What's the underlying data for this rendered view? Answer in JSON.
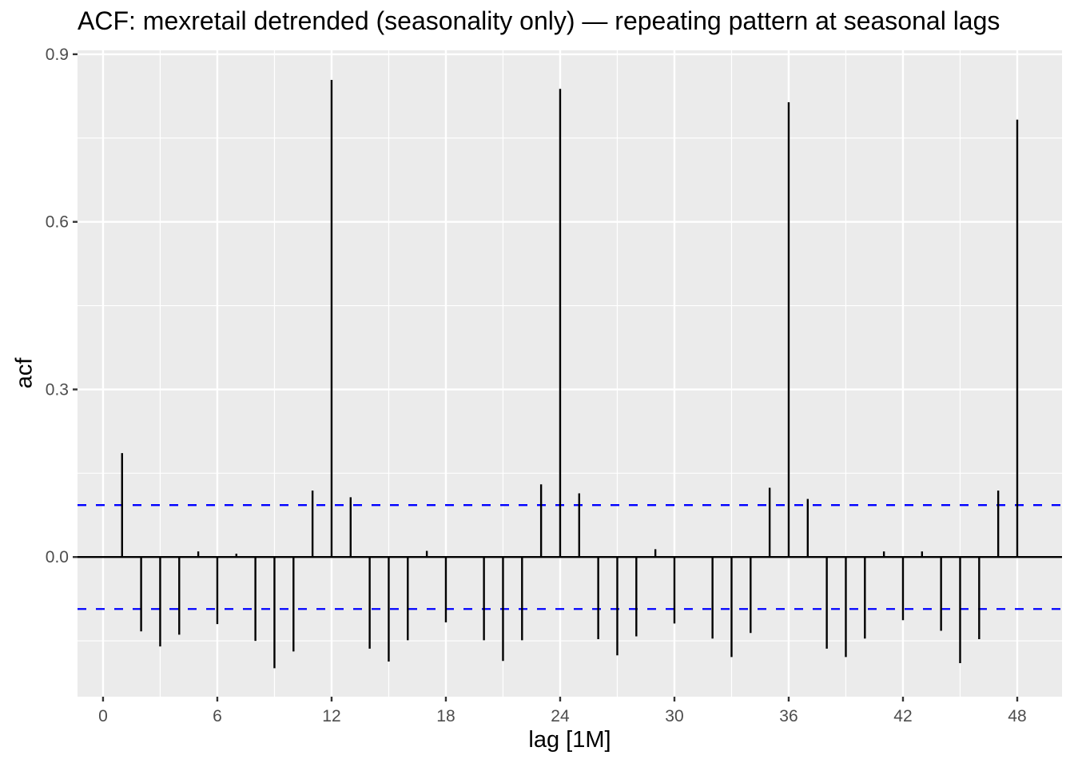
{
  "chart_data": {
    "type": "bar",
    "subtype": "acf-lollipop",
    "title": "ACF: mexretail detrended (seasonality only) — repeating pattern at seasonal lags",
    "xlabel": "lag [1M]",
    "ylabel": "acf",
    "xlim": [
      -1.34,
      50.35
    ],
    "ylim": [
      -0.25,
      0.907
    ],
    "x_ticks": [
      0,
      6,
      12,
      18,
      24,
      30,
      36,
      42,
      48
    ],
    "x_tick_labels": [
      "0",
      "6",
      "12",
      "18",
      "24",
      "30",
      "36",
      "42",
      "48"
    ],
    "y_ticks": [
      0.0,
      0.3,
      0.6,
      0.9
    ],
    "y_tick_labels": [
      "0.0",
      "0.3",
      "0.6",
      "0.9"
    ],
    "grid": true,
    "confidence_bound": 0.093,
    "colors": {
      "panel": "#ebebeb",
      "grid": "#ffffff",
      "bar": "#000000",
      "ci": "#0000ff",
      "tick_text": "#4d4d4d"
    },
    "lags": [
      1,
      2,
      3,
      4,
      5,
      6,
      7,
      8,
      9,
      10,
      11,
      12,
      13,
      14,
      15,
      16,
      17,
      18,
      19,
      20,
      21,
      22,
      23,
      24,
      25,
      26,
      27,
      28,
      29,
      30,
      31,
      32,
      33,
      34,
      35,
      36,
      37,
      38,
      39,
      40,
      41,
      42,
      43,
      44,
      45,
      46,
      47,
      48
    ],
    "values": [
      0.186,
      -0.133,
      -0.16,
      -0.139,
      0.01,
      -0.12,
      0.006,
      -0.15,
      -0.199,
      -0.169,
      0.119,
      0.854,
      0.107,
      -0.164,
      -0.187,
      -0.149,
      0.011,
      -0.117,
      0.0,
      -0.149,
      -0.186,
      -0.149,
      0.13,
      0.838,
      0.114,
      -0.147,
      -0.176,
      -0.142,
      0.014,
      -0.119,
      0.0,
      -0.146,
      -0.179,
      -0.136,
      0.124,
      0.814,
      0.104,
      -0.164,
      -0.179,
      -0.146,
      0.01,
      -0.113,
      0.01,
      -0.132,
      -0.19,
      -0.147,
      0.119,
      0.783
    ]
  }
}
